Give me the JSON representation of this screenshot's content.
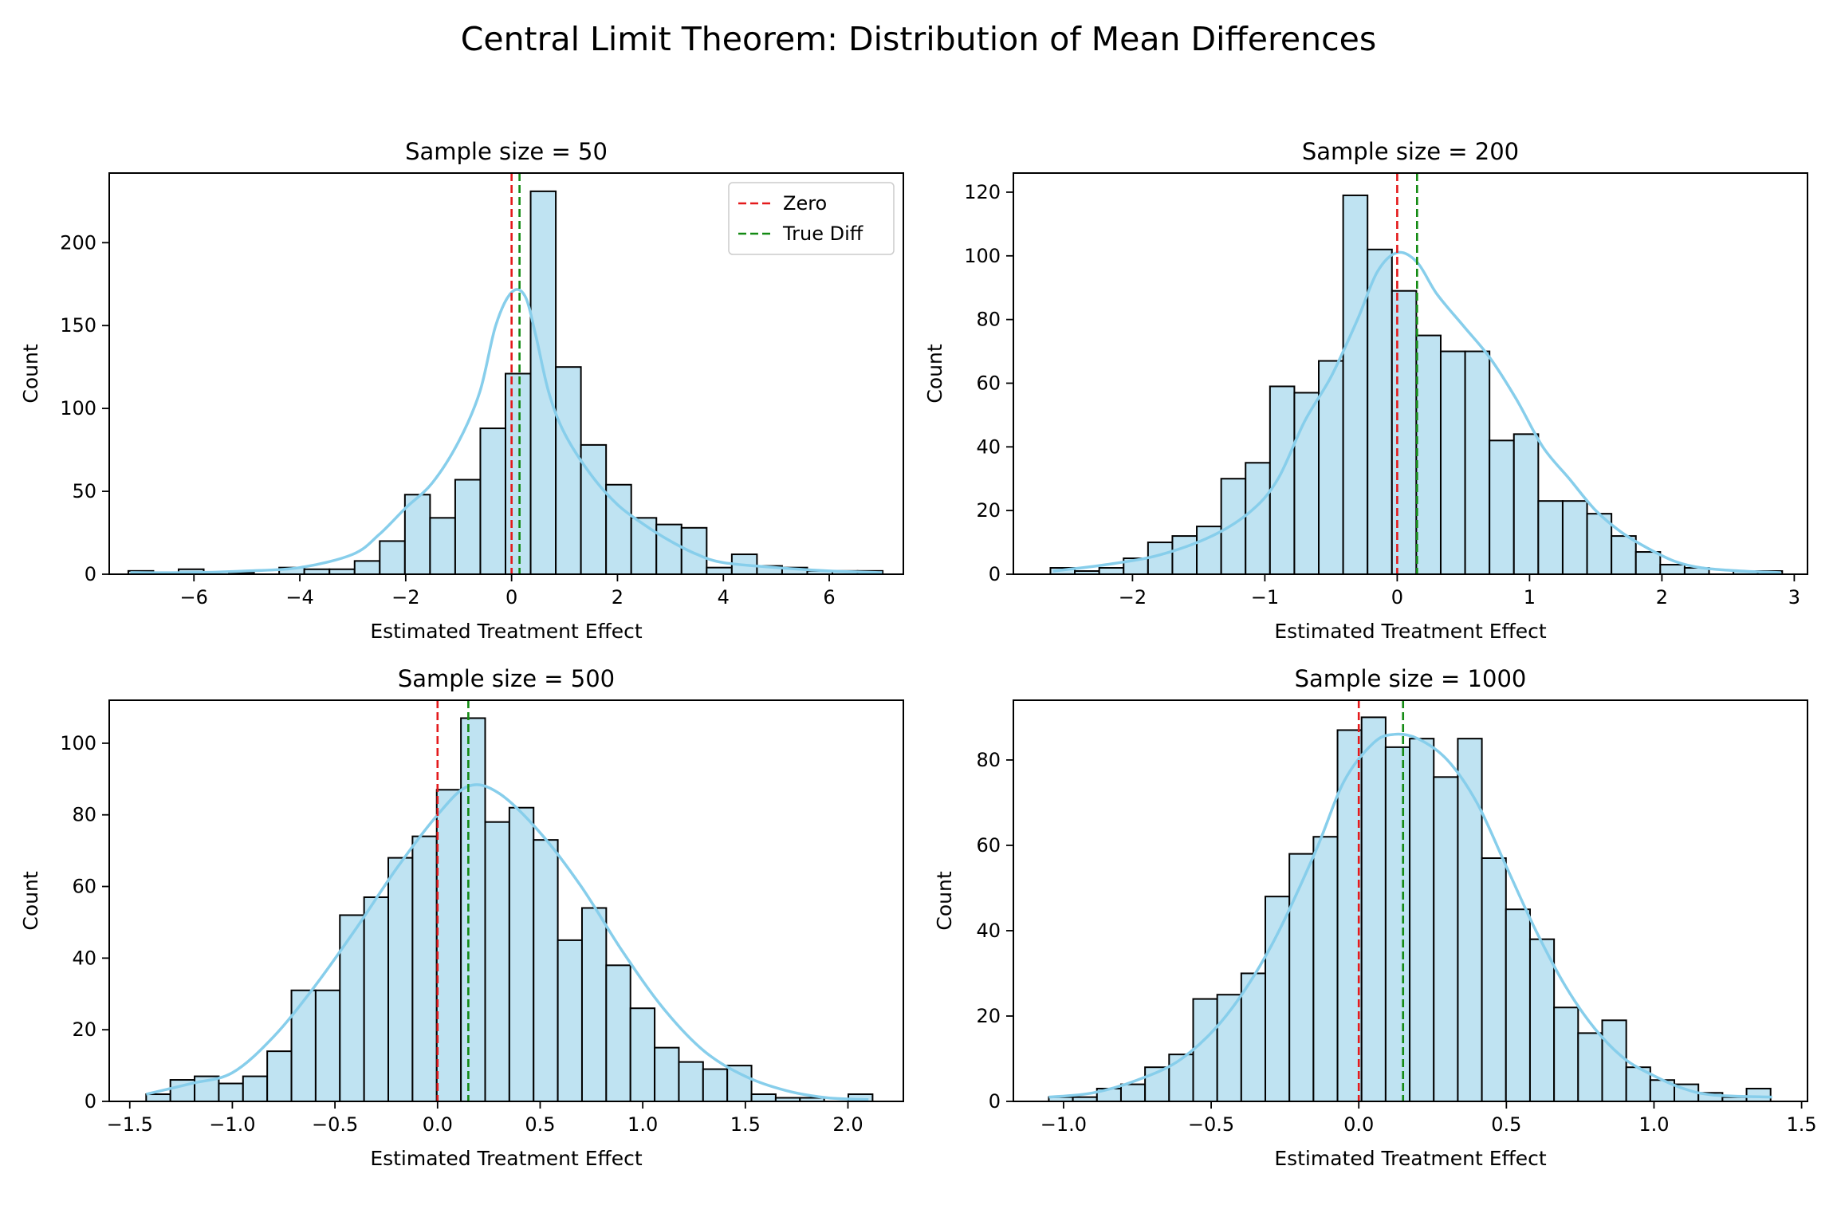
{
  "chart_data": {
    "title": "Central Limit Theorem: Distribution of Mean Differences",
    "colors": {
      "bar_fill": "#bfe3f2",
      "bar_edge": "#000000",
      "kde": "#87ceeb",
      "zero_line": "#e41a1c",
      "true_diff_line": "#138a13"
    },
    "legend": {
      "placement": "upper-right of first panel",
      "entries": [
        "Zero",
        "True Diff"
      ]
    },
    "true_diff": 0.15,
    "panels": [
      {
        "type": "bar",
        "title": "Sample size = 50",
        "xlabel": "Estimated Treatment Effect",
        "ylabel": "Count",
        "xlim": [
          -7.6,
          7.4
        ],
        "ylim": [
          0,
          242
        ],
        "xticks": [
          -6,
          -4,
          -2,
          0,
          2,
          4,
          6
        ],
        "yticks": [
          0,
          50,
          100,
          150,
          200
        ],
        "xtick_labels": [
          "−6",
          "−4",
          "−2",
          "0",
          "2",
          "4",
          "6"
        ],
        "ytick_labels": [
          "0",
          "50",
          "100",
          "150",
          "200"
        ],
        "bin_start": -7.24,
        "bin_width": 0.475,
        "counts": [
          2,
          0,
          3,
          0,
          1,
          0,
          4,
          3,
          3,
          8,
          20,
          48,
          34,
          57,
          88,
          121,
          231,
          125,
          78,
          54,
          34,
          30,
          28,
          4,
          12,
          5,
          4,
          2,
          2,
          2
        ],
        "kde": [
          [
            -7.2,
            1
          ],
          [
            -6,
            1
          ],
          [
            -5,
            2
          ],
          [
            -4,
            4
          ],
          [
            -3,
            12
          ],
          [
            -2.5,
            24
          ],
          [
            -2,
            40
          ],
          [
            -1.5,
            55
          ],
          [
            -1,
            80
          ],
          [
            -0.6,
            110
          ],
          [
            -0.3,
            150
          ],
          [
            0,
            170
          ],
          [
            0.25,
            168
          ],
          [
            0.45,
            145
          ],
          [
            0.7,
            110
          ],
          [
            1,
            85
          ],
          [
            1.5,
            60
          ],
          [
            2,
            42
          ],
          [
            2.5,
            30
          ],
          [
            3,
            20
          ],
          [
            3.5,
            12
          ],
          [
            4,
            7
          ],
          [
            5,
            4
          ],
          [
            6,
            2
          ],
          [
            7,
            1
          ]
        ],
        "show_legend": true
      },
      {
        "type": "bar",
        "title": "Sample size = 200",
        "xlabel": "Estimated Treatment Effect",
        "ylabel": "Count",
        "xlim": [
          -2.9,
          3.1
        ],
        "ylim": [
          0,
          126
        ],
        "xticks": [
          -2,
          -1,
          0,
          1,
          2,
          3
        ],
        "yticks": [
          0,
          20,
          40,
          60,
          80,
          100,
          120
        ],
        "xtick_labels": [
          "−2",
          "−1",
          "0",
          "1",
          "2",
          "3"
        ],
        "ytick_labels": [
          "0",
          "20",
          "40",
          "60",
          "80",
          "100",
          "120"
        ],
        "bin_start": -2.62,
        "bin_width": 0.1843,
        "counts": [
          2,
          1,
          2,
          5,
          10,
          12,
          15,
          30,
          35,
          59,
          57,
          67,
          119,
          102,
          89,
          75,
          70,
          70,
          42,
          44,
          23,
          23,
          19,
          12,
          7,
          3,
          2,
          0,
          1,
          1
        ],
        "kde": [
          [
            -2.6,
            1
          ],
          [
            -2.2,
            3
          ],
          [
            -1.8,
            6
          ],
          [
            -1.4,
            12
          ],
          [
            -1.1,
            20
          ],
          [
            -0.9,
            30
          ],
          [
            -0.7,
            48
          ],
          [
            -0.5,
            62
          ],
          [
            -0.3,
            80
          ],
          [
            -0.15,
            95
          ],
          [
            0,
            101
          ],
          [
            0.15,
            98
          ],
          [
            0.3,
            88
          ],
          [
            0.5,
            78
          ],
          [
            0.7,
            68
          ],
          [
            0.9,
            55
          ],
          [
            1.1,
            40
          ],
          [
            1.3,
            30
          ],
          [
            1.5,
            20
          ],
          [
            1.7,
            13
          ],
          [
            1.9,
            8
          ],
          [
            2.1,
            4
          ],
          [
            2.3,
            2
          ],
          [
            2.6,
            1
          ],
          [
            2.9,
            0.5
          ]
        ],
        "show_legend": false
      },
      {
        "type": "bar",
        "title": "Sample size = 500",
        "xlabel": "Estimated Treatment Effect",
        "ylabel": "Count",
        "xlim": [
          -1.6,
          2.27
        ],
        "ylim": [
          0,
          112
        ],
        "xticks": [
          -1.5,
          -1.0,
          -0.5,
          0.0,
          0.5,
          1.0,
          1.5,
          2.0
        ],
        "yticks": [
          0,
          20,
          40,
          60,
          80,
          100
        ],
        "xtick_labels": [
          "−1.5",
          "−1.0",
          "−0.5",
          "0.0",
          "0.5",
          "1.0",
          "1.5",
          "2.0"
        ],
        "ytick_labels": [
          "0",
          "20",
          "40",
          "60",
          "80",
          "100"
        ],
        "bin_start": -1.42,
        "bin_width": 0.118,
        "counts": [
          2,
          6,
          7,
          5,
          7,
          14,
          31,
          31,
          52,
          57,
          68,
          74,
          87,
          107,
          78,
          82,
          73,
          45,
          54,
          38,
          26,
          15,
          11,
          9,
          10,
          2,
          1,
          1,
          0,
          2
        ],
        "kde": [
          [
            -1.42,
            2
          ],
          [
            -1.2,
            5
          ],
          [
            -1.0,
            8
          ],
          [
            -0.8,
            18
          ],
          [
            -0.6,
            32
          ],
          [
            -0.4,
            48
          ],
          [
            -0.2,
            65
          ],
          [
            0,
            80
          ],
          [
            0.15,
            88
          ],
          [
            0.3,
            86
          ],
          [
            0.5,
            75
          ],
          [
            0.7,
            60
          ],
          [
            0.9,
            42
          ],
          [
            1.1,
            26
          ],
          [
            1.3,
            14
          ],
          [
            1.5,
            7
          ],
          [
            1.7,
            3
          ],
          [
            1.9,
            1
          ],
          [
            2.1,
            0.5
          ]
        ],
        "show_legend": false
      },
      {
        "type": "bar",
        "title": "Sample size = 1000",
        "xlabel": "Estimated Treatment Effect",
        "ylabel": "Count",
        "xlim": [
          -1.17,
          1.52
        ],
        "ylim": [
          0,
          94
        ],
        "xticks": [
          -1.0,
          -0.5,
          0.0,
          0.5,
          1.0,
          1.5
        ],
        "yticks": [
          0,
          20,
          40,
          60,
          80
        ],
        "xtick_labels": [
          "−1.0",
          "−0.5",
          "0.0",
          "0.5",
          "1.0",
          "1.5"
        ],
        "ytick_labels": [
          "0",
          "20",
          "40",
          "60",
          "80"
        ],
        "bin_start": -1.05,
        "bin_width": 0.0815,
        "counts": [
          1,
          1,
          3,
          4,
          8,
          11,
          24,
          25,
          30,
          48,
          58,
          62,
          87,
          90,
          83,
          85,
          76,
          85,
          57,
          45,
          38,
          22,
          16,
          19,
          8,
          5,
          4,
          2,
          1,
          3
        ],
        "kde": [
          [
            -1.05,
            1
          ],
          [
            -0.9,
            2
          ],
          [
            -0.75,
            5
          ],
          [
            -0.6,
            10
          ],
          [
            -0.45,
            20
          ],
          [
            -0.3,
            36
          ],
          [
            -0.15,
            58
          ],
          [
            -0.05,
            75
          ],
          [
            0.05,
            84
          ],
          [
            0.12,
            86
          ],
          [
            0.2,
            85
          ],
          [
            0.3,
            80
          ],
          [
            0.4,
            70
          ],
          [
            0.5,
            55
          ],
          [
            0.6,
            40
          ],
          [
            0.7,
            27
          ],
          [
            0.8,
            17
          ],
          [
            0.9,
            10
          ],
          [
            1.0,
            6
          ],
          [
            1.1,
            3
          ],
          [
            1.2,
            1.5
          ],
          [
            1.4,
            1
          ]
        ],
        "show_legend": false
      }
    ]
  }
}
